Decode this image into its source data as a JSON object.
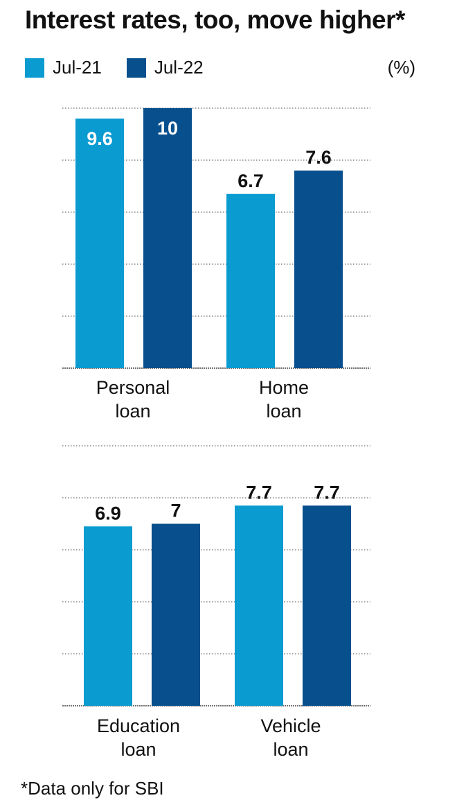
{
  "title": "Interest rates, too, move higher*",
  "unit": "(%)",
  "footnote": "*Data only for SBI",
  "colors": {
    "jul21": "#0a9bd1",
    "jul22": "#074f8d",
    "grid": "#444444",
    "text": "#111111"
  },
  "legend": [
    {
      "label": "Jul-21",
      "color": "#0a9bd1"
    },
    {
      "label": "Jul-22",
      "color": "#074f8d"
    }
  ],
  "chart_data": [
    {
      "type": "bar",
      "categories": [
        "Personal\nloan",
        "Home\nloan"
      ],
      "series": [
        {
          "name": "Jul-21",
          "values": [
            9.6,
            6.7
          ]
        },
        {
          "name": "Jul-22",
          "values": [
            10,
            7.6
          ]
        }
      ],
      "data_labels": [
        [
          "9.6",
          "6.7"
        ],
        [
          "10",
          "7.6"
        ]
      ],
      "ylim": [
        0,
        10
      ],
      "grid": true,
      "legend_position": "top-left"
    },
    {
      "type": "bar",
      "categories": [
        "Education\nloan",
        "Vehicle\nloan"
      ],
      "series": [
        {
          "name": "Jul-21",
          "values": [
            6.9,
            7.7
          ]
        },
        {
          "name": "Jul-22",
          "values": [
            7,
            7.7
          ]
        }
      ],
      "data_labels": [
        [
          "6.9",
          "7.7"
        ],
        [
          "7",
          "7.7"
        ]
      ],
      "ylim": [
        0,
        10
      ],
      "grid": true,
      "legend_position": "top-left"
    }
  ]
}
